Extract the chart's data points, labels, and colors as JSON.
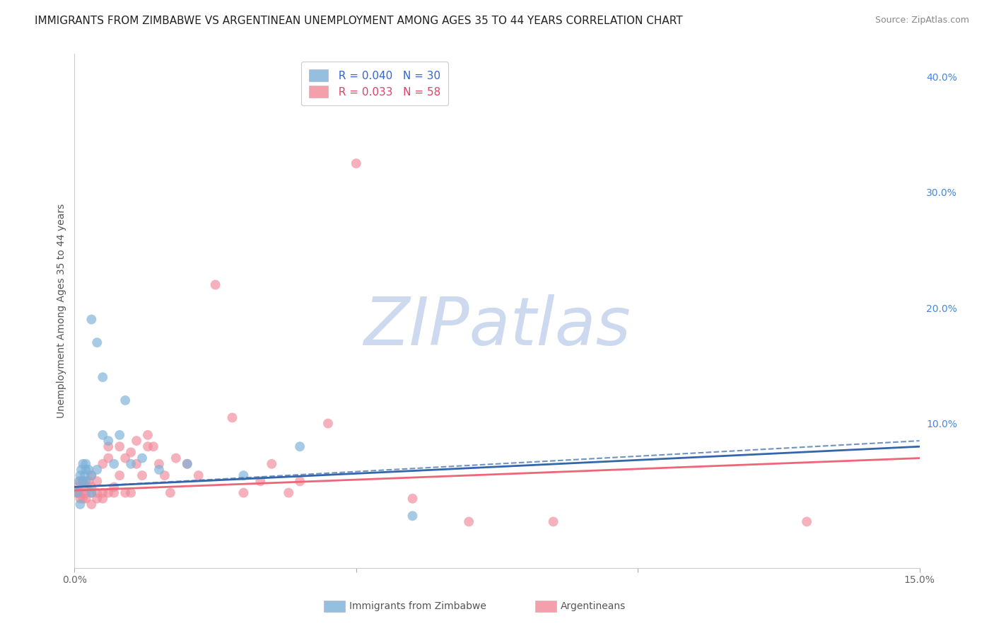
{
  "title": "IMMIGRANTS FROM ZIMBABWE VS ARGENTINEAN UNEMPLOYMENT AMONG AGES 35 TO 44 YEARS CORRELATION CHART",
  "source": "Source: ZipAtlas.com",
  "ylabel": "Unemployment Among Ages 35 to 44 years",
  "right_yticks": [
    0.0,
    0.1,
    0.2,
    0.3,
    0.4
  ],
  "right_yticklabels": [
    "",
    "10.0%",
    "20.0%",
    "30.0%",
    "40.0%"
  ],
  "xticks": [
    0.0,
    0.05,
    0.1,
    0.15
  ],
  "xticklabels": [
    "0.0%",
    "",
    "",
    "15.0%"
  ],
  "xmin": 0.0,
  "xmax": 0.15,
  "ymin": -0.025,
  "ymax": 0.42,
  "background_color": "#ffffff",
  "watermark": "ZIPatlas",
  "watermark_color": "#ccd9ee",
  "grid_color": "#dddddd",
  "zimbabwe_x": [
    0.0005,
    0.0008,
    0.001,
    0.001,
    0.0012,
    0.0015,
    0.0015,
    0.0018,
    0.002,
    0.002,
    0.002,
    0.0025,
    0.003,
    0.003,
    0.003,
    0.004,
    0.004,
    0.005,
    0.005,
    0.006,
    0.007,
    0.008,
    0.009,
    0.01,
    0.012,
    0.015,
    0.02,
    0.03,
    0.04,
    0.06
  ],
  "zimbabwe_y": [
    0.04,
    0.05,
    0.03,
    0.055,
    0.06,
    0.05,
    0.065,
    0.055,
    0.05,
    0.06,
    0.065,
    0.06,
    0.04,
    0.055,
    0.19,
    0.06,
    0.17,
    0.09,
    0.14,
    0.085,
    0.065,
    0.09,
    0.12,
    0.065,
    0.07,
    0.06,
    0.065,
    0.055,
    0.08,
    0.02
  ],
  "argentina_x": [
    0.0003,
    0.0005,
    0.0007,
    0.001,
    0.001,
    0.0012,
    0.0015,
    0.0015,
    0.002,
    0.002,
    0.002,
    0.0025,
    0.003,
    0.003,
    0.003,
    0.003,
    0.004,
    0.004,
    0.004,
    0.005,
    0.005,
    0.005,
    0.006,
    0.006,
    0.006,
    0.007,
    0.007,
    0.008,
    0.008,
    0.009,
    0.009,
    0.01,
    0.01,
    0.011,
    0.011,
    0.012,
    0.013,
    0.013,
    0.014,
    0.015,
    0.016,
    0.017,
    0.018,
    0.02,
    0.022,
    0.025,
    0.028,
    0.03,
    0.033,
    0.035,
    0.038,
    0.04,
    0.045,
    0.05,
    0.06,
    0.07,
    0.085,
    0.13
  ],
  "argentina_y": [
    0.04,
    0.045,
    0.04,
    0.035,
    0.05,
    0.04,
    0.035,
    0.05,
    0.035,
    0.04,
    0.045,
    0.05,
    0.03,
    0.04,
    0.045,
    0.055,
    0.035,
    0.04,
    0.05,
    0.035,
    0.04,
    0.065,
    0.04,
    0.07,
    0.08,
    0.04,
    0.045,
    0.055,
    0.08,
    0.04,
    0.07,
    0.04,
    0.075,
    0.065,
    0.085,
    0.055,
    0.08,
    0.09,
    0.08,
    0.065,
    0.055,
    0.04,
    0.07,
    0.065,
    0.055,
    0.22,
    0.105,
    0.04,
    0.05,
    0.065,
    0.04,
    0.05,
    0.1,
    0.325,
    0.035,
    0.015,
    0.015,
    0.015
  ],
  "zimbabwe_color": "#7ab0d8",
  "argentina_color": "#f08898",
  "trendline_zimbabwe_color": "#3366aa",
  "trendline_argentina_color": "#ee6677",
  "zimbabwe_label": "Immigrants from Zimbabwe",
  "argentina_label": "Argentineans",
  "blue_text_color": "#3366cc",
  "pink_text_color": "#dd4466",
  "title_fontsize": 11,
  "source_fontsize": 9,
  "axis_label_fontsize": 10,
  "tick_fontsize": 10,
  "legend_fontsize": 11,
  "marker_size": 100
}
